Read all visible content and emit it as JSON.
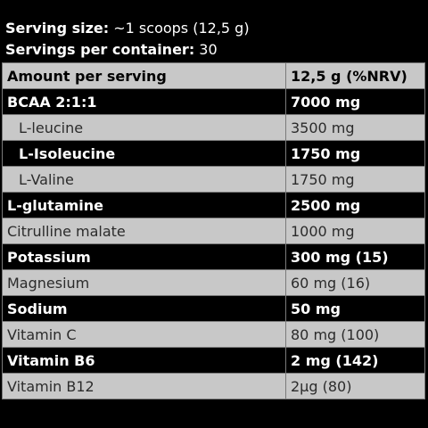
{
  "serving": {
    "size_label": "Serving size:",
    "size_value": " ~1 scoops (12,5 g)",
    "per_container_label": "Servings per container:",
    "per_container_value": " 30"
  },
  "table": {
    "headers": [
      "Amount per serving",
      "12,5 g (%NRV)"
    ],
    "rows": [
      {
        "name": "BCAA 2:1:1",
        "amount": "7000 mg",
        "style": "bold"
      },
      {
        "name": "L-leucine",
        "amount": "3500 mg",
        "style": "grey",
        "sub": true
      },
      {
        "name": "L-Isoleucine",
        "amount": "1750 mg",
        "style": "bold",
        "sub": true
      },
      {
        "name": "L-Valine",
        "amount": "1750 mg",
        "style": "grey",
        "sub": true
      },
      {
        "name": "L-glutamine",
        "amount": "2500  mg",
        "style": "bold"
      },
      {
        "name": "Citrulline malate",
        "amount": "1000 mg",
        "style": "grey"
      },
      {
        "name": "Potassium",
        "amount": "300 mg (15)",
        "style": "bold"
      },
      {
        "name": "Magnesium",
        "amount": "60 mg (16)",
        "style": "grey"
      },
      {
        "name": "Sodium",
        "amount": "50 mg",
        "style": "bold"
      },
      {
        "name": "Vitamin C",
        "amount": "80 mg (100)",
        "style": "grey"
      },
      {
        "name": "Vitamin B6",
        "amount": "2 mg (142)",
        "style": "bold"
      },
      {
        "name": "Vitamin B12",
        "amount": "2µg (80)",
        "style": "grey"
      }
    ]
  }
}
